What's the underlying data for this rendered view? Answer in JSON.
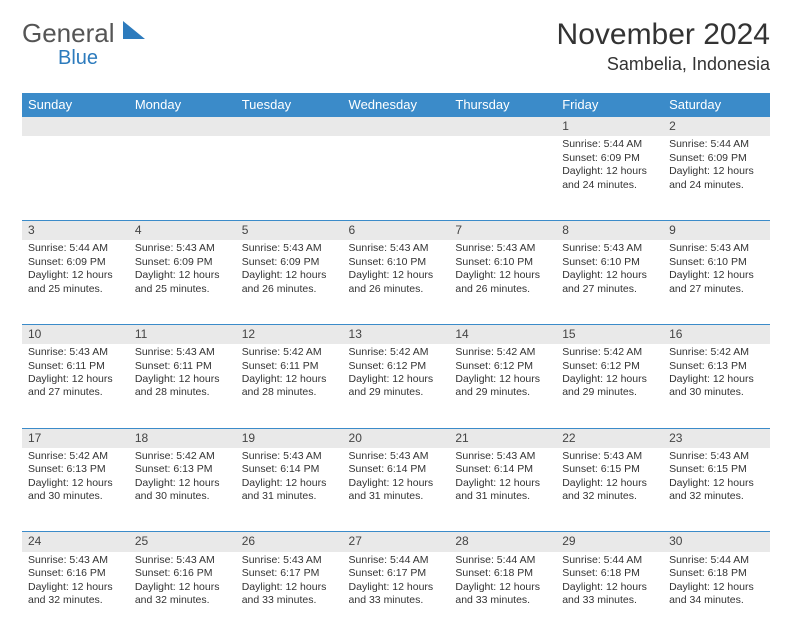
{
  "logo": {
    "text1": "General",
    "text2": "Blue"
  },
  "title": "November 2024",
  "location": "Sambelia, Indonesia",
  "colors": {
    "header_bg": "#3b8bc9",
    "header_text": "#ffffff",
    "daynum_bg": "#e9e9e9",
    "rule": "#3b8bc9",
    "text": "#333333",
    "logo_gray": "#555555",
    "logo_blue": "#2d7bbd"
  },
  "day_headers": [
    "Sunday",
    "Monday",
    "Tuesday",
    "Wednesday",
    "Thursday",
    "Friday",
    "Saturday"
  ],
  "days": {
    "1": {
      "sunrise": "5:44 AM",
      "sunset": "6:09 PM",
      "daylight": "12 hours and 24 minutes."
    },
    "2": {
      "sunrise": "5:44 AM",
      "sunset": "6:09 PM",
      "daylight": "12 hours and 24 minutes."
    },
    "3": {
      "sunrise": "5:44 AM",
      "sunset": "6:09 PM",
      "daylight": "12 hours and 25 minutes."
    },
    "4": {
      "sunrise": "5:43 AM",
      "sunset": "6:09 PM",
      "daylight": "12 hours and 25 minutes."
    },
    "5": {
      "sunrise": "5:43 AM",
      "sunset": "6:09 PM",
      "daylight": "12 hours and 26 minutes."
    },
    "6": {
      "sunrise": "5:43 AM",
      "sunset": "6:10 PM",
      "daylight": "12 hours and 26 minutes."
    },
    "7": {
      "sunrise": "5:43 AM",
      "sunset": "6:10 PM",
      "daylight": "12 hours and 26 minutes."
    },
    "8": {
      "sunrise": "5:43 AM",
      "sunset": "6:10 PM",
      "daylight": "12 hours and 27 minutes."
    },
    "9": {
      "sunrise": "5:43 AM",
      "sunset": "6:10 PM",
      "daylight": "12 hours and 27 minutes."
    },
    "10": {
      "sunrise": "5:43 AM",
      "sunset": "6:11 PM",
      "daylight": "12 hours and 27 minutes."
    },
    "11": {
      "sunrise": "5:43 AM",
      "sunset": "6:11 PM",
      "daylight": "12 hours and 28 minutes."
    },
    "12": {
      "sunrise": "5:42 AM",
      "sunset": "6:11 PM",
      "daylight": "12 hours and 28 minutes."
    },
    "13": {
      "sunrise": "5:42 AM",
      "sunset": "6:12 PM",
      "daylight": "12 hours and 29 minutes."
    },
    "14": {
      "sunrise": "5:42 AM",
      "sunset": "6:12 PM",
      "daylight": "12 hours and 29 minutes."
    },
    "15": {
      "sunrise": "5:42 AM",
      "sunset": "6:12 PM",
      "daylight": "12 hours and 29 minutes."
    },
    "16": {
      "sunrise": "5:42 AM",
      "sunset": "6:13 PM",
      "daylight": "12 hours and 30 minutes."
    },
    "17": {
      "sunrise": "5:42 AM",
      "sunset": "6:13 PM",
      "daylight": "12 hours and 30 minutes."
    },
    "18": {
      "sunrise": "5:42 AM",
      "sunset": "6:13 PM",
      "daylight": "12 hours and 30 minutes."
    },
    "19": {
      "sunrise": "5:43 AM",
      "sunset": "6:14 PM",
      "daylight": "12 hours and 31 minutes."
    },
    "20": {
      "sunrise": "5:43 AM",
      "sunset": "6:14 PM",
      "daylight": "12 hours and 31 minutes."
    },
    "21": {
      "sunrise": "5:43 AM",
      "sunset": "6:14 PM",
      "daylight": "12 hours and 31 minutes."
    },
    "22": {
      "sunrise": "5:43 AM",
      "sunset": "6:15 PM",
      "daylight": "12 hours and 32 minutes."
    },
    "23": {
      "sunrise": "5:43 AM",
      "sunset": "6:15 PM",
      "daylight": "12 hours and 32 minutes."
    },
    "24": {
      "sunrise": "5:43 AM",
      "sunset": "6:16 PM",
      "daylight": "12 hours and 32 minutes."
    },
    "25": {
      "sunrise": "5:43 AM",
      "sunset": "6:16 PM",
      "daylight": "12 hours and 32 minutes."
    },
    "26": {
      "sunrise": "5:43 AM",
      "sunset": "6:17 PM",
      "daylight": "12 hours and 33 minutes."
    },
    "27": {
      "sunrise": "5:44 AM",
      "sunset": "6:17 PM",
      "daylight": "12 hours and 33 minutes."
    },
    "28": {
      "sunrise": "5:44 AM",
      "sunset": "6:18 PM",
      "daylight": "12 hours and 33 minutes."
    },
    "29": {
      "sunrise": "5:44 AM",
      "sunset": "6:18 PM",
      "daylight": "12 hours and 33 minutes."
    },
    "30": {
      "sunrise": "5:44 AM",
      "sunset": "6:18 PM",
      "daylight": "12 hours and 34 minutes."
    }
  },
  "labels": {
    "sunrise": "Sunrise:",
    "sunset": "Sunset:",
    "daylight": "Daylight:"
  },
  "layout": {
    "first_weekday_index": 5,
    "num_days": 30,
    "weeks": [
      [
        null,
        null,
        null,
        null,
        null,
        1,
        2
      ],
      [
        3,
        4,
        5,
        6,
        7,
        8,
        9
      ],
      [
        10,
        11,
        12,
        13,
        14,
        15,
        16
      ],
      [
        17,
        18,
        19,
        20,
        21,
        22,
        23
      ],
      [
        24,
        25,
        26,
        27,
        28,
        29,
        30
      ]
    ]
  }
}
